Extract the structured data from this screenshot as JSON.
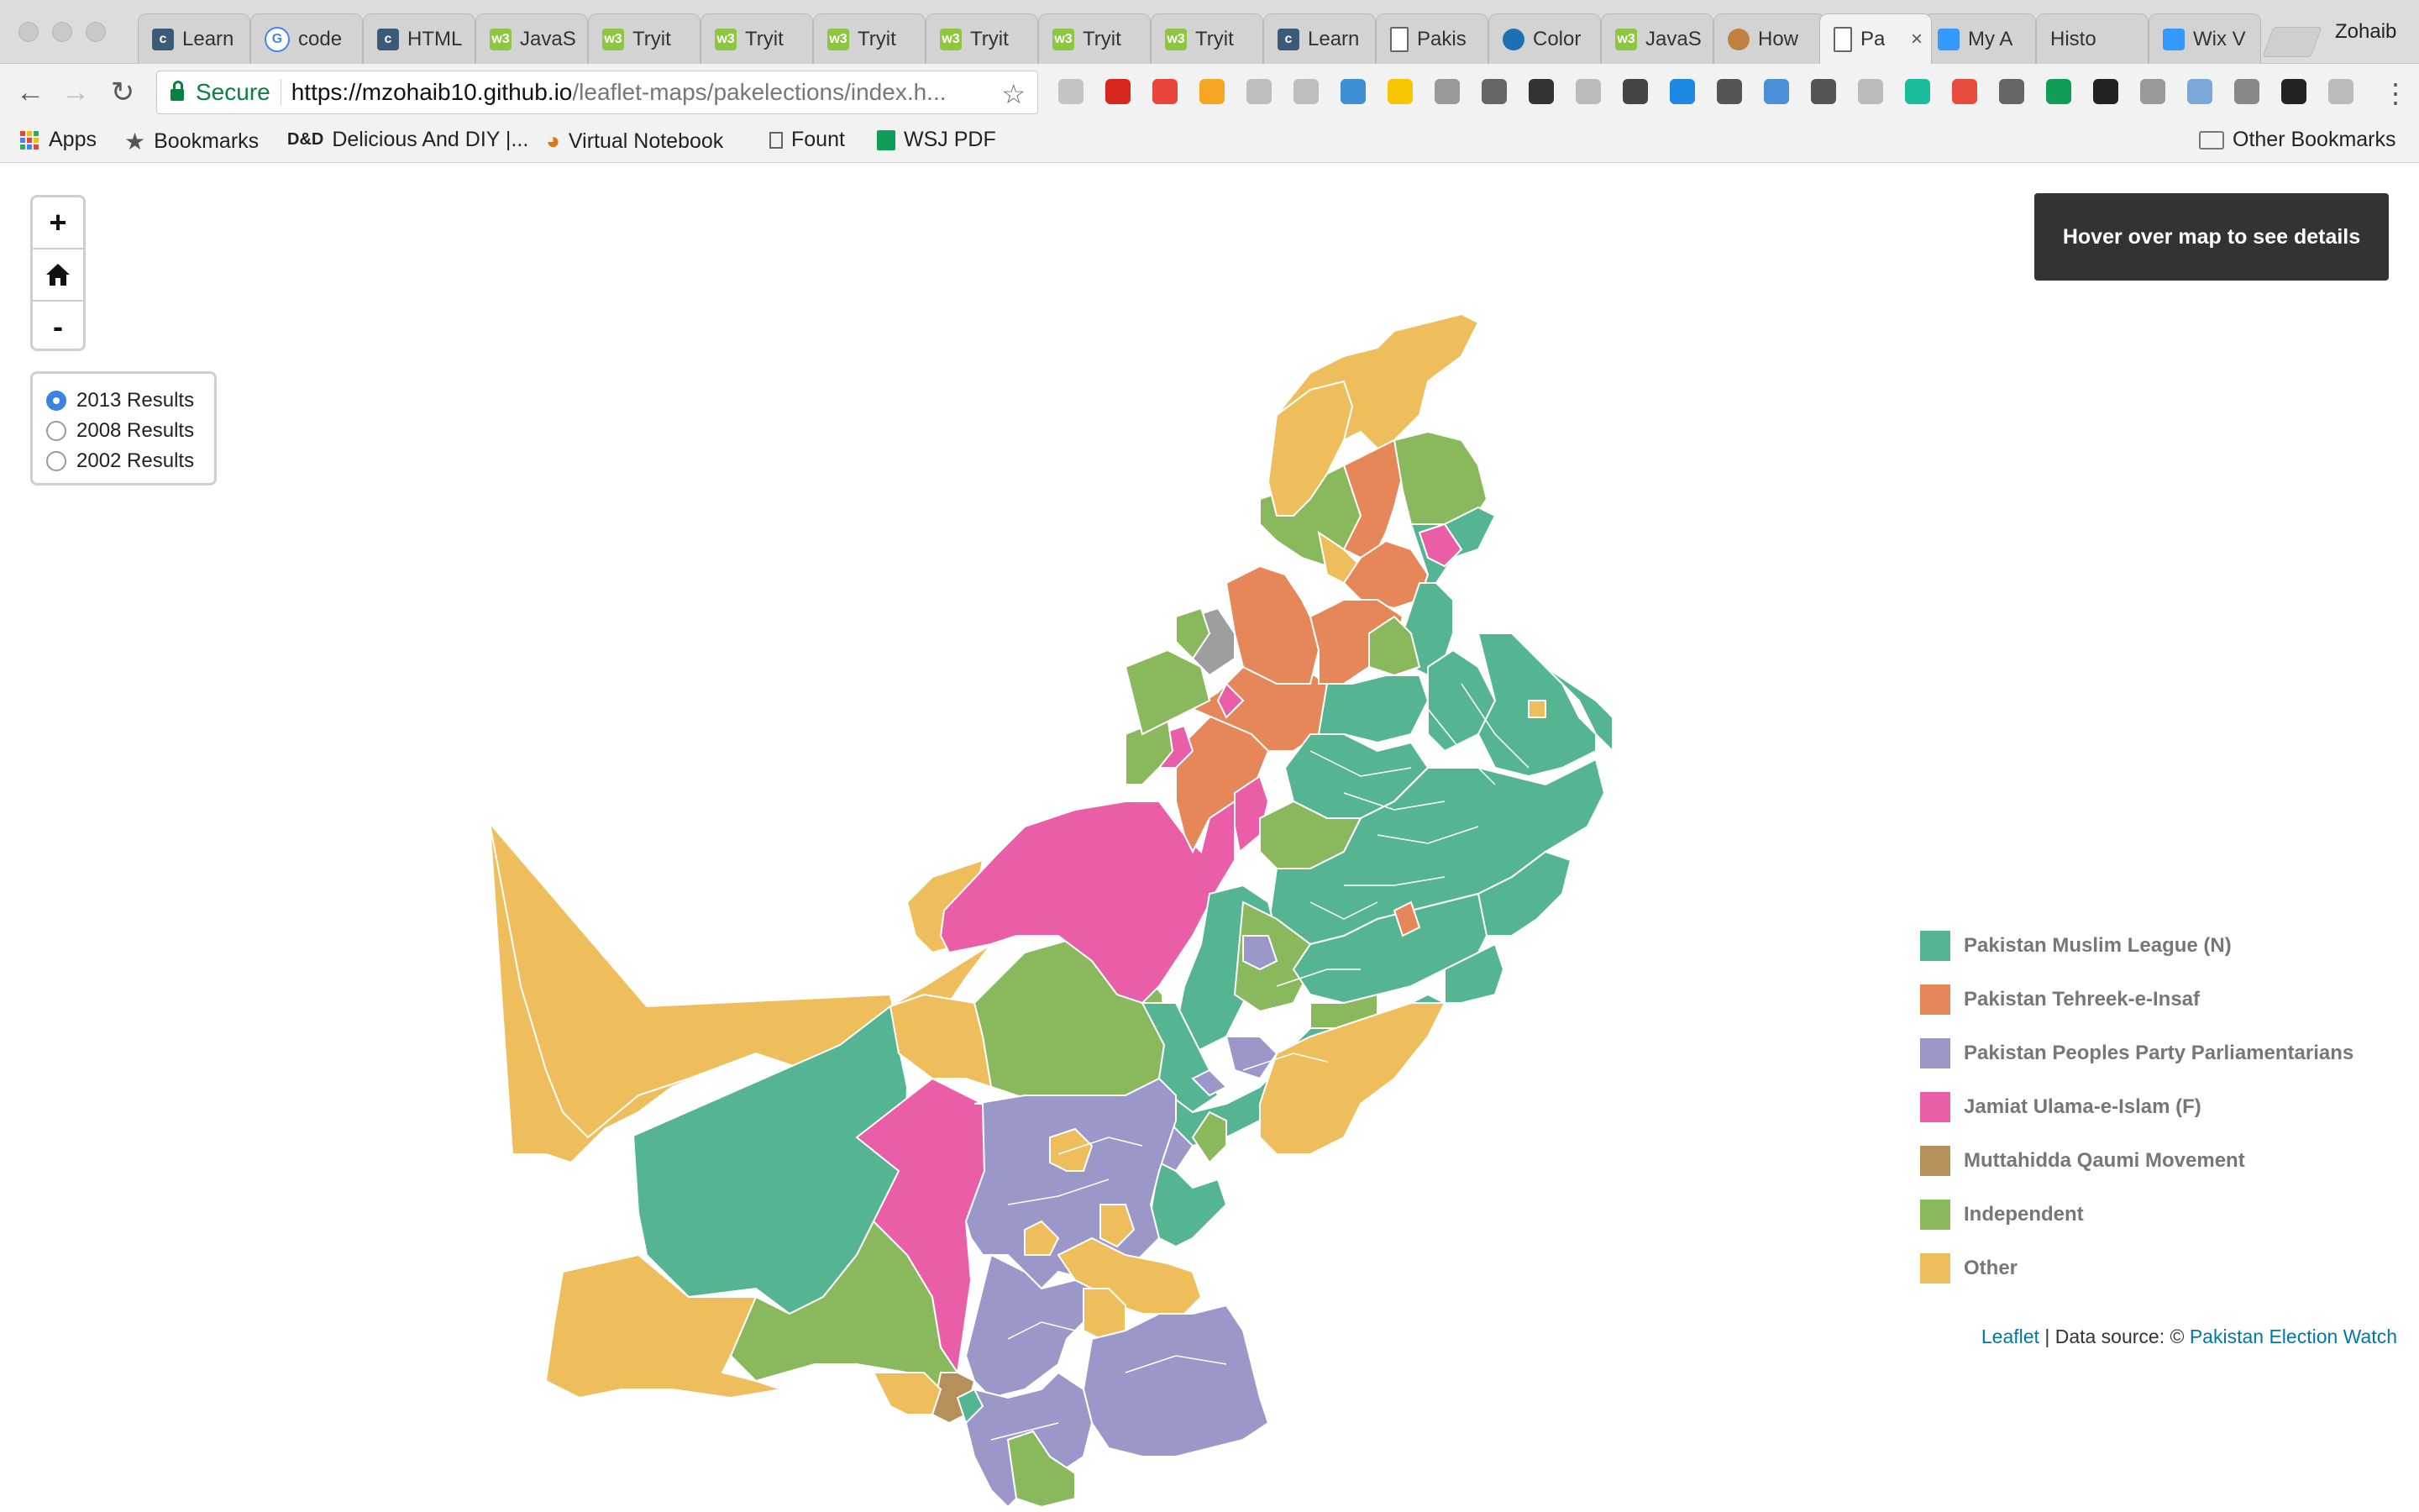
{
  "tabs": [
    {
      "label": "Learn",
      "favicon": "c-icon",
      "color": "#3b5a77"
    },
    {
      "label": "code",
      "favicon": "google-icon",
      "color": "#4285f4"
    },
    {
      "label": "HTML",
      "favicon": "c-icon",
      "color": "#3b5a77"
    },
    {
      "label": "JavaS",
      "favicon": "w3-icon",
      "color": "#8dc63f"
    },
    {
      "label": "Tryit",
      "favicon": "w3-icon",
      "color": "#8dc63f"
    },
    {
      "label": "Tryit",
      "favicon": "w3-icon",
      "color": "#8dc63f"
    },
    {
      "label": "Tryit",
      "favicon": "w3-icon",
      "color": "#8dc63f"
    },
    {
      "label": "Tryit",
      "favicon": "w3-icon",
      "color": "#8dc63f"
    },
    {
      "label": "Tryit",
      "favicon": "w3-icon",
      "color": "#8dc63f"
    },
    {
      "label": "Tryit",
      "favicon": "w3-icon",
      "color": "#8dc63f"
    },
    {
      "label": "Learn",
      "favicon": "c-icon",
      "color": "#3b5a77"
    },
    {
      "label": "Pakis",
      "favicon": "page-icon",
      "color": "#ffffff"
    },
    {
      "label": "Color",
      "favicon": "circle-icon",
      "color": "#1f6fb5"
    },
    {
      "label": "JavaS",
      "favicon": "w3-icon",
      "color": "#8dc63f"
    },
    {
      "label": "How",
      "favicon": "circle-icon",
      "color": "#c08040"
    },
    {
      "label": "Pa",
      "favicon": "page-icon",
      "color": "#ffffff",
      "active": true
    },
    {
      "label": "My A",
      "favicon": "x-icon",
      "color": "#3399ff"
    },
    {
      "label": "Histo",
      "favicon": "none",
      "color": "#d3d3d3"
    },
    {
      "label": "Wix V",
      "favicon": "x-icon",
      "color": "#3399ff"
    }
  ],
  "profile_name": "Zohaib",
  "omnibox": {
    "secure_label": "Secure",
    "url_host": "https://mzohaib10.github.io",
    "url_path": "/leaflet-maps/pakelections/index.h..."
  },
  "bookmarks": {
    "apps": "Apps",
    "bookmarks": "Bookmarks",
    "delicious": "Delicious And DIY |...",
    "virtual_notebook": "Virtual Notebook",
    "fount": "Fount",
    "wsj": "WSJ PDF",
    "other": "Other Bookmarks"
  },
  "map": {
    "zoom_in": "+",
    "zoom_out": "-",
    "home_icon": "home-icon",
    "radios": [
      {
        "label": "2013 Results",
        "checked": true
      },
      {
        "label": "2008 Results",
        "checked": false
      },
      {
        "label": "2002 Results",
        "checked": false
      }
    ],
    "info_text": "Hover over map to see details",
    "legend": [
      {
        "label": "Pakistan Muslim League (N)",
        "color": "#55b593"
      },
      {
        "label": "Pakistan Tehreek-e-Insaf",
        "color": "#e6875a"
      },
      {
        "label": "Pakistan Peoples Party Parliamentarians",
        "color": "#9b97c8"
      },
      {
        "label": "Jamiat Ulama-e-Islam (F)",
        "color": "#ea5ea7"
      },
      {
        "label": "Muttahidda Qaumi Movement",
        "color": "#b5905a"
      },
      {
        "label": "Independent",
        "color": "#8ab85c"
      },
      {
        "label": "Other",
        "color": "#eebd5c"
      }
    ],
    "attribution": {
      "leaflet": "Leaflet",
      "sep": " | Data source: © ",
      "source": "Pakistan Election Watch"
    }
  }
}
